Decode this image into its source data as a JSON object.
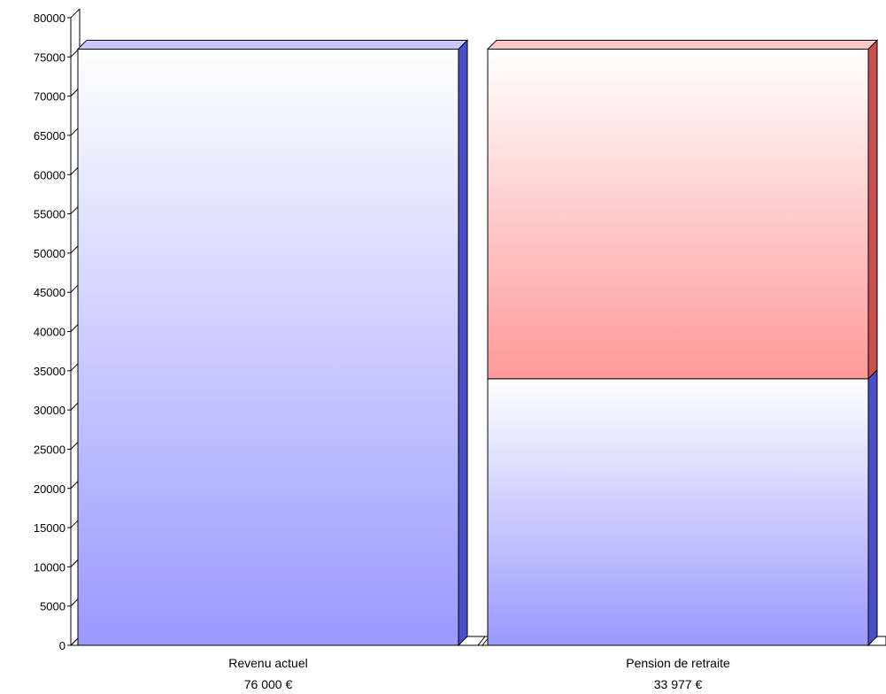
{
  "chart_data": {
    "type": "bar",
    "stacked": true,
    "three_d": true,
    "categories": [
      "Revenu actuel",
      "Pension de retraite"
    ],
    "value_labels": [
      "76 000 €",
      "33 977 €"
    ],
    "series": [
      {
        "values": [
          76000,
          33977
        ],
        "color": "#9999ff"
      },
      {
        "values": [
          0,
          42023
        ],
        "color": "#ff9999"
      }
    ],
    "ylim": [
      0,
      80000
    ],
    "ytick_step": 5000,
    "yticks": [
      "0",
      "5000",
      "10000",
      "15000",
      "20000",
      "25000",
      "30000",
      "35000",
      "40000",
      "45000",
      "50000",
      "55000",
      "60000",
      "65000",
      "70000",
      "75000",
      "80000"
    ],
    "grid": false,
    "legend": "none",
    "colors": {
      "blue_side": "#4a4fc8",
      "blue_top": "#c8c8ff",
      "red_side": "#c85050",
      "red_top": "#ffc8c8",
      "axis": "#000000"
    }
  }
}
